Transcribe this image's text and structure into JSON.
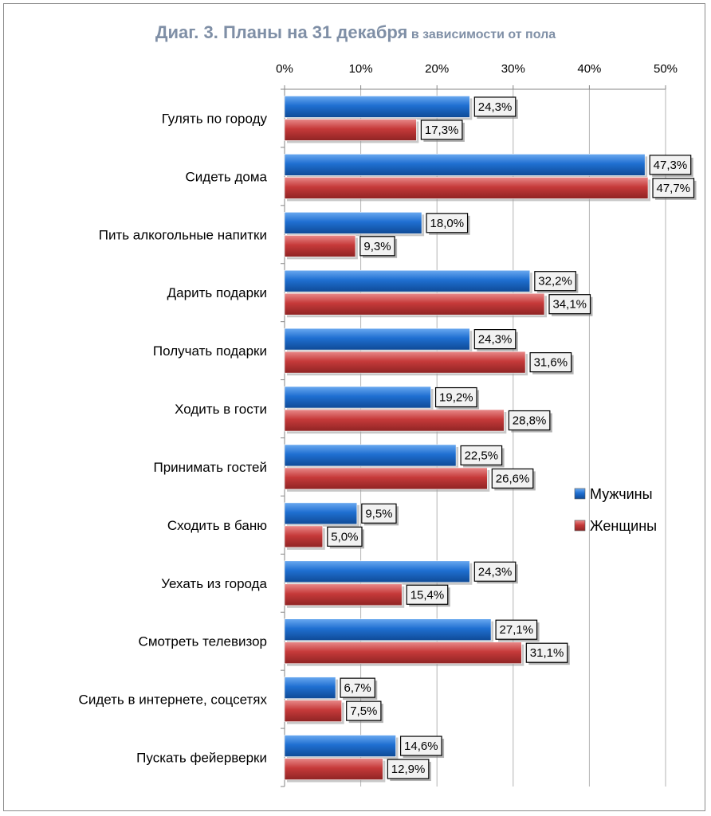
{
  "chart_data": {
    "type": "bar",
    "orientation": "horizontal",
    "title": "Диаг. 3. Планы на 31 декабря",
    "subtitle": "в зависимости от пола",
    "categories": [
      "Гулять по городу",
      "Сидеть дома",
      "Пить алкогольные напитки",
      "Дарить подарки",
      "Получать подарки",
      "Ходить в гости",
      "Принимать гостей",
      "Сходить в баню",
      "Уехать из города",
      "Смотреть телевизор",
      "Сидеть в интернете, соцсетях",
      "Пускать фейерверки"
    ],
    "series": [
      {
        "name": "Мужчины",
        "color": "#1f6fd1",
        "values": [
          24.3,
          47.3,
          18.0,
          32.2,
          24.3,
          19.2,
          22.5,
          9.5,
          24.3,
          27.1,
          6.7,
          14.6
        ],
        "labels": [
          "24,3%",
          "47,3%",
          "18,0%",
          "32,2%",
          "24,3%",
          "19,2%",
          "22,5%",
          "9,5%",
          "24,3%",
          "27,1%",
          "6,7%",
          "14,6%"
        ]
      },
      {
        "name": "Женщины",
        "color": "#c63a3a",
        "values": [
          17.3,
          47.7,
          9.3,
          34.1,
          31.6,
          28.8,
          26.6,
          5.0,
          15.4,
          31.1,
          7.5,
          12.9
        ],
        "labels": [
          "17,3%",
          "47,7%",
          "9,3%",
          "34,1%",
          "31,6%",
          "28,8%",
          "26,6%",
          "5,0%",
          "15,4%",
          "31,1%",
          "7,5%",
          "12,9%"
        ]
      }
    ],
    "x_ticks": [
      "0%",
      "10%",
      "20%",
      "30%",
      "40%",
      "50%"
    ],
    "xlim": [
      0,
      50
    ],
    "grid": true,
    "legend_position": "right"
  }
}
